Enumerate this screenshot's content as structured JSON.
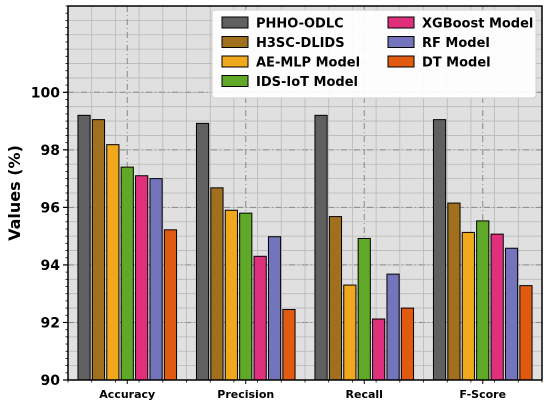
{
  "chart_data": {
    "type": "bar",
    "title": "",
    "xlabel": "",
    "ylabel": "Values (%)",
    "ylim": [
      90,
      103
    ],
    "yticks": [
      90,
      92,
      94,
      96,
      98,
      100
    ],
    "grid": true,
    "legend_position": "top-right",
    "categories": [
      "Accuracy",
      "Precision",
      "Recall",
      "F-Score"
    ],
    "series": [
      {
        "name": "PHHO-ODLC",
        "color": "#606060",
        "values": [
          99.2,
          98.92,
          99.2,
          99.05
        ]
      },
      {
        "name": "H3SC-DLIDS",
        "color": "#a0701e",
        "values": [
          99.05,
          96.68,
          95.68,
          96.15
        ]
      },
      {
        "name": "AE-MLP Model",
        "color": "#f0a81c",
        "values": [
          98.18,
          95.9,
          93.3,
          95.13
        ]
      },
      {
        "name": "IDS-IoT Model",
        "color": "#60a828",
        "values": [
          97.4,
          95.8,
          94.92,
          95.53
        ]
      },
      {
        "name": "XGBoost Model",
        "color": "#e0307c",
        "values": [
          97.1,
          94.3,
          92.12,
          95.07
        ]
      },
      {
        "name": "RF Model",
        "color": "#7474bc",
        "values": [
          97.0,
          94.98,
          93.68,
          94.58
        ]
      },
      {
        "name": "DT Model",
        "color": "#e05a10",
        "values": [
          95.22,
          92.45,
          92.5,
          93.28
        ]
      }
    ]
  }
}
